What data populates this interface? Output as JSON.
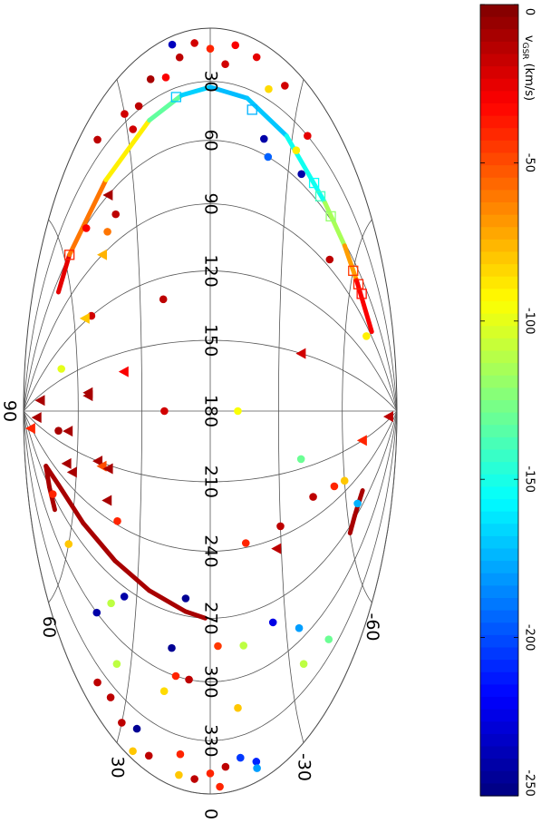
{
  "chart_data": {
    "type": "sky-map",
    "projection": "hammer",
    "lon_ticks": [
      30,
      60,
      90,
      120,
      150,
      180,
      210,
      240,
      270,
      300,
      330,
      {
        "value": 360,
        "label": "0"
      }
    ],
    "lat_ticks": [
      90,
      60,
      30,
      -30,
      -60
    ],
    "grid": true,
    "colorbar": {
      "label": "v",
      "label_sub": "GSR",
      "label_unit": "(km/s)",
      "clim": [
        -250,
        0
      ],
      "ticks": [
        0,
        -50,
        -100,
        -150,
        -200,
        -250
      ],
      "colormap": "jet"
    },
    "groups": [
      {
        "marker": "circle",
        "l": [
          5,
          8,
          8,
          10,
          12,
          14,
          15,
          18,
          20,
          22,
          24,
          25,
          28,
          30,
          20,
          38,
          45,
          55,
          52,
          60,
          62,
          75,
          80,
          85,
          100,
          130,
          120,
          140,
          180,
          180,
          200,
          238,
          205,
          228,
          230,
          232,
          235,
          238,
          262,
          262,
          275,
          280,
          285,
          283,
          285,
          287,
          293,
          300,
          300,
          300,
          310,
          315,
          315,
          320,
          315,
          340,
          340,
          345,
          342,
          348,
          352,
          352,
          352,
          350,
          355,
          345,
          340,
          338,
          348,
          356,
          270,
          285
        ],
        "b": [
          12,
          5,
          -8,
          -15,
          0,
          10,
          -25,
          20,
          -5,
          15,
          -20,
          30,
          25,
          -35,
          40,
          28,
          -32,
          -35,
          -20,
          -22,
          50,
          38,
          42,
          -50,
          -70,
          20,
          52,
          68,
          -12,
          20,
          70,
          40,
          -40,
          -45,
          -55,
          -60,
          -30,
          -15,
          10,
          -65,
          35,
          -25,
          -13,
          -3,
          40,
          15,
          -35,
          45,
          13,
          8,
          17,
          35,
          -35,
          -45,
          -10,
          25,
          10,
          -5,
          -10,
          -15,
          -15,
          10,
          5,
          20,
          25,
          30,
          40,
          35,
          0,
          -3,
          70,
          60
        ],
        "v": [
          -235,
          -20,
          -30,
          -25,
          -40,
          -15,
          -20,
          -10,
          -20,
          -30,
          -85,
          -20,
          -15,
          -25,
          -15,
          -20,
          -90,
          -240,
          -240,
          -195,
          -30,
          -15,
          -60,
          -15,
          -90,
          -15,
          -20,
          -100,
          -95,
          -20,
          -10,
          -40,
          -130,
          -15,
          -40,
          -80,
          -15,
          -40,
          -245,
          -175,
          -240,
          -225,
          -110,
          -45,
          -110,
          -245,
          -180,
          -240,
          -40,
          -15,
          -85,
          -110,
          -110,
          -130,
          -80,
          -245,
          -40,
          -15,
          -205,
          -210,
          -180,
          -80,
          -15,
          -15,
          -80,
          -15,
          -15,
          -15,
          -40,
          -40,
          -40,
          -80
        ]
      },
      {
        "marker": "triangle",
        "l": [
          60,
          90,
          118,
          160,
          168,
          170,
          160,
          150,
          195,
          197,
          210,
          212,
          212,
          225,
          228,
          230,
          245,
          245,
          200,
          210
        ],
        "b": [
          40,
          45,
          55,
          80,
          55,
          55,
          38,
          -40,
          82,
          65,
          50,
          48,
          45,
          65,
          62,
          45,
          85,
          -28,
          -85,
          -70
        ],
        "v": [
          -10,
          -75,
          -80,
          -10,
          -10,
          -10,
          -30,
          -20,
          -10,
          -10,
          -10,
          -50,
          -10,
          -10,
          -10,
          -10,
          -40,
          -15,
          -15,
          -40
        ]
      },
      {
        "marker": "square",
        "l": [
          60,
          35,
          40,
          52,
          55,
          58,
          68,
          70,
          72
        ],
        "b": [
          58,
          12,
          -15,
          -40,
          -43,
          -48,
          -60,
          -63,
          -65
        ],
        "v": [
          -40,
          -170,
          -175,
          -155,
          -140,
          -120,
          -45,
          -40,
          -35
        ]
      }
    ],
    "tracks": [
      {
        "l": [
          70,
          60,
          50,
          40,
          35,
          33,
          35,
          42,
          55,
          62,
          70,
          85
        ],
        "b": [
          65,
          58,
          40,
          22,
          10,
          0,
          -13,
          -28,
          -45,
          -55,
          -62,
          -72
        ],
        "v": [
          -10,
          -40,
          -80,
          -100,
          -165,
          -170,
          -175,
          -165,
          -140,
          -90,
          -50,
          -10
        ]
      },
      {
        "l": [
          280,
          270,
          255,
          252,
          256,
          260,
          264,
          268,
          270
        ],
        "b": [
          68,
          72,
          75,
          68,
          55,
          40,
          25,
          10,
          2
        ],
        "v": [
          -10,
          -10,
          -10,
          -10,
          -10,
          -10,
          -10,
          -10,
          -10
        ]
      },
      {
        "l": [
          275,
          268,
          262,
          258
        ],
        "b": [
          -60,
          -63,
          -66,
          -68
        ],
        "v": [
          -10,
          -10,
          -10,
          -10
        ]
      }
    ]
  }
}
